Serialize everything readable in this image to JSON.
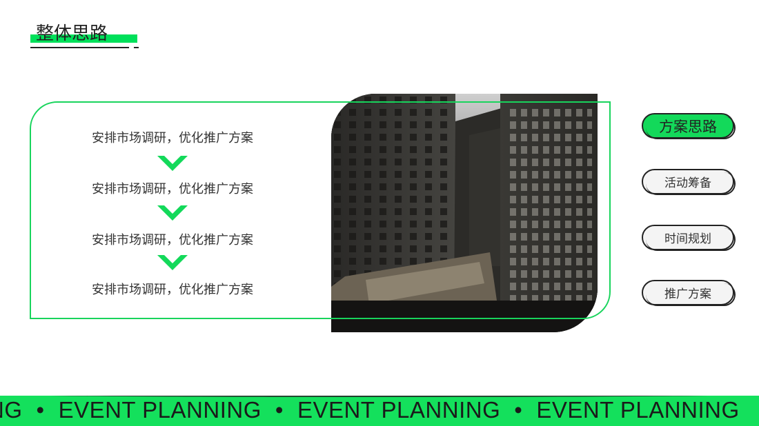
{
  "title": "整体思路",
  "steps": [
    "安排市场调研，优化推广方案",
    "安排市场调研，优化推广方案",
    "安排市场调研，优化推广方案",
    "安排市场调研，优化推广方案"
  ],
  "nav": [
    {
      "label": "方案思路",
      "active": true
    },
    {
      "label": "活动筹备",
      "active": false
    },
    {
      "label": "时间规划",
      "active": false
    },
    {
      "label": "推广方案",
      "active": false
    }
  ],
  "banner": {
    "items": [
      "NG",
      "EVENT PLANNING",
      "EVENT PLANNING",
      "EVENT PLANNING"
    ],
    "separator": "•"
  },
  "colors": {
    "accent": "#14e05c",
    "dark": "#222222"
  },
  "icons": {
    "step_separator": "chevron-down-icon"
  }
}
